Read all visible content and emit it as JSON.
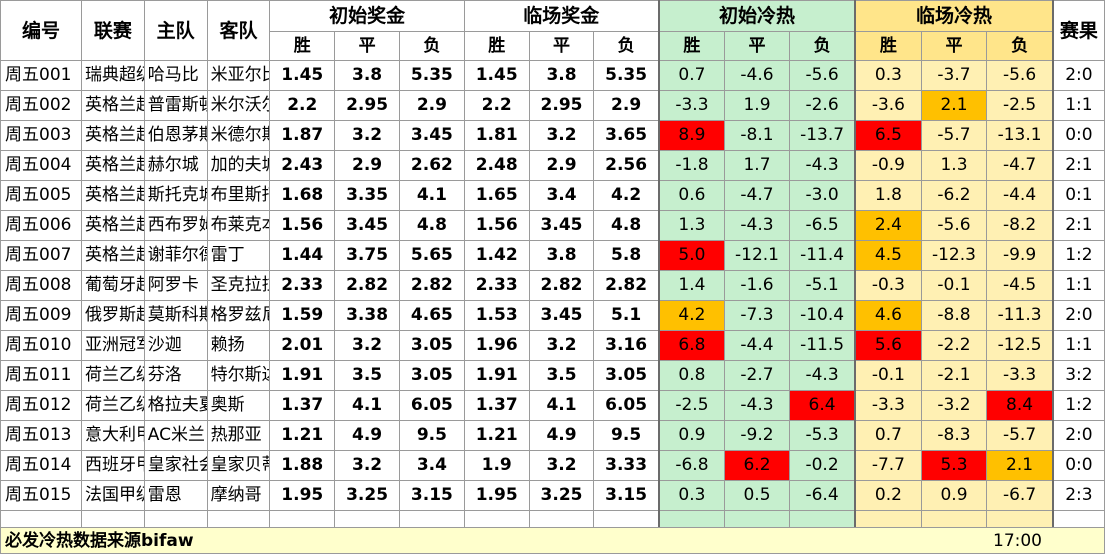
{
  "headers": {
    "id": "编号",
    "league": "联赛",
    "home": "主队",
    "away": "客队",
    "init_prize": "初始奖金",
    "live_prize": "临场奖金",
    "init_heat": "初始冷热",
    "live_heat": "临场冷热",
    "result": "赛果",
    "win": "胜",
    "draw": "平",
    "lose": "负"
  },
  "rows": [
    {
      "id": "周五001",
      "league": "瑞典超级",
      "home": "哈马比",
      "away": "米亚尔比",
      "ip": [
        "1.45",
        "3.8",
        "5.35"
      ],
      "lp": [
        "1.45",
        "3.8",
        "5.35"
      ],
      "ih": [
        "0.7",
        "-4.6",
        "-5.6"
      ],
      "lh": [
        "0.3",
        "-3.7",
        "-5.6"
      ],
      "res": "2:0"
    },
    {
      "id": "周五002",
      "league": "英格兰超",
      "home": "普雷斯顿",
      "away": "米尔沃尔",
      "ip": [
        "2.2",
        "2.95",
        "2.9"
      ],
      "lp": [
        "2.2",
        "2.95",
        "2.9"
      ],
      "ih": [
        "-3.3",
        "1.9",
        "-2.6"
      ],
      "lh": [
        "-3.6",
        "2.1",
        "-2.5"
      ],
      "res": "1:1"
    },
    {
      "id": "周五003",
      "league": "英格兰超",
      "home": "伯恩茅斯",
      "away": "米德尔斯",
      "ip": [
        "1.87",
        "3.2",
        "3.45"
      ],
      "lp": [
        "1.81",
        "3.2",
        "3.65"
      ],
      "ih": [
        "8.9",
        "-8.1",
        "-13.7"
      ],
      "lh": [
        "6.5",
        "-5.7",
        "-13.1"
      ],
      "res": "0:0"
    },
    {
      "id": "周五004",
      "league": "英格兰超",
      "home": "赫尔城",
      "away": "加的夫城",
      "ip": [
        "2.43",
        "2.9",
        "2.62"
      ],
      "lp": [
        "2.48",
        "2.9",
        "2.56"
      ],
      "ih": [
        "-1.8",
        "1.7",
        "-4.3"
      ],
      "lh": [
        "-0.9",
        "1.3",
        "-4.7"
      ],
      "res": "2:1"
    },
    {
      "id": "周五005",
      "league": "英格兰超",
      "home": "斯托克城",
      "away": "布里斯托",
      "ip": [
        "1.68",
        "3.35",
        "4.1"
      ],
      "lp": [
        "1.65",
        "3.4",
        "4.2"
      ],
      "ih": [
        "0.6",
        "-4.7",
        "-3.0"
      ],
      "lh": [
        "1.8",
        "-6.2",
        "-4.4"
      ],
      "res": "0:1"
    },
    {
      "id": "周五006",
      "league": "英格兰超",
      "home": "西布罗姆",
      "away": "布莱克本",
      "ip": [
        "1.56",
        "3.45",
        "4.8"
      ],
      "lp": [
        "1.56",
        "3.45",
        "4.8"
      ],
      "ih": [
        "1.3",
        "-4.3",
        "-6.5"
      ],
      "lh": [
        "2.4",
        "-5.6",
        "-8.2"
      ],
      "res": "2:1"
    },
    {
      "id": "周五007",
      "league": "英格兰超",
      "home": "谢菲尔德",
      "away": "雷丁",
      "ip": [
        "1.44",
        "3.75",
        "5.65"
      ],
      "lp": [
        "1.42",
        "3.8",
        "5.8"
      ],
      "ih": [
        "5.0",
        "-12.1",
        "-11.4"
      ],
      "lh": [
        "4.5",
        "-12.3",
        "-9.9"
      ],
      "res": "1:2"
    },
    {
      "id": "周五008",
      "league": "葡萄牙超",
      "home": "阿罗卡",
      "away": "圣克拉拉",
      "ip": [
        "2.33",
        "2.82",
        "2.82"
      ],
      "lp": [
        "2.33",
        "2.82",
        "2.82"
      ],
      "ih": [
        "1.4",
        "-1.6",
        "-5.1"
      ],
      "lh": [
        "-0.3",
        "-0.1",
        "-4.5"
      ],
      "res": "1:1"
    },
    {
      "id": "周五009",
      "league": "俄罗斯超",
      "home": "莫斯科斯",
      "away": "格罗兹尼",
      "ip": [
        "1.59",
        "3.38",
        "4.65"
      ],
      "lp": [
        "1.53",
        "3.45",
        "5.1"
      ],
      "ih": [
        "4.2",
        "-7.3",
        "-10.4"
      ],
      "lh": [
        "4.6",
        "-8.8",
        "-11.3"
      ],
      "res": "2:0"
    },
    {
      "id": "周五010",
      "league": "亚洲冠军",
      "home": "沙迦",
      "away": "赖扬",
      "ip": [
        "2.01",
        "3.2",
        "3.05"
      ],
      "lp": [
        "1.96",
        "3.2",
        "3.16"
      ],
      "ih": [
        "6.8",
        "-4.4",
        "-11.5"
      ],
      "lh": [
        "5.6",
        "-2.2",
        "-12.5"
      ],
      "res": "1:1"
    },
    {
      "id": "周五011",
      "league": "荷兰乙级",
      "home": "芬洛",
      "away": "特尔斯达",
      "ip": [
        "1.91",
        "3.5",
        "3.05"
      ],
      "lp": [
        "1.91",
        "3.5",
        "3.05"
      ],
      "ih": [
        "0.8",
        "-2.7",
        "-4.3"
      ],
      "lh": [
        "-0.1",
        "-2.1",
        "-3.3"
      ],
      "res": "3:2"
    },
    {
      "id": "周五012",
      "league": "荷兰乙级",
      "home": "格拉夫夏",
      "away": "奥斯",
      "ip": [
        "1.37",
        "4.1",
        "6.05"
      ],
      "lp": [
        "1.37",
        "4.1",
        "6.05"
      ],
      "ih": [
        "-2.5",
        "-4.3",
        "6.4"
      ],
      "lh": [
        "-3.3",
        "-3.2",
        "8.4"
      ],
      "res": "1:2"
    },
    {
      "id": "周五013",
      "league": "意大利甲",
      "home": "AC米兰",
      "away": "热那亚",
      "ip": [
        "1.21",
        "4.9",
        "9.5"
      ],
      "lp": [
        "1.21",
        "4.9",
        "9.5"
      ],
      "ih": [
        "0.9",
        "-9.2",
        "-5.3"
      ],
      "lh": [
        "0.7",
        "-8.3",
        "-5.7"
      ],
      "res": "2:0"
    },
    {
      "id": "周五014",
      "league": "西班牙甲",
      "home": "皇家社会",
      "away": "皇家贝蒂",
      "ip": [
        "1.88",
        "3.2",
        "3.4"
      ],
      "lp": [
        "1.9",
        "3.2",
        "3.33"
      ],
      "ih": [
        "-6.8",
        "6.2",
        "-0.2"
      ],
      "lh": [
        "-7.7",
        "5.3",
        "2.1"
      ],
      "res": "0:0"
    },
    {
      "id": "周五015",
      "league": "法国甲级",
      "home": "雷恩",
      "away": "摩纳哥",
      "ip": [
        "1.95",
        "3.25",
        "3.15"
      ],
      "lp": [
        "1.95",
        "3.25",
        "3.15"
      ],
      "ih": [
        "0.3",
        "0.5",
        "-6.4"
      ],
      "lh": [
        "0.2",
        "0.9",
        "-6.7"
      ],
      "res": "2:3"
    }
  ],
  "highlights": {
    "ih": {
      "2": {
        "0": "red"
      },
      "6": {
        "0": "red"
      },
      "8": {
        "0": "org"
      },
      "9": {
        "0": "red"
      },
      "11": {
        "2": "red"
      },
      "13": {
        "1": "red"
      }
    },
    "lh": {
      "1": {
        "1": "org"
      },
      "2": {
        "0": "red"
      },
      "5": {
        "0": "org"
      },
      "6": {
        "0": "org"
      },
      "8": {
        "0": "org"
      },
      "9": {
        "0": "red"
      },
      "11": {
        "2": "red"
      },
      "13": {
        "1": "red",
        "2": "org"
      }
    }
  },
  "footer": {
    "label": "必发冷热数据来源bifaw",
    "time": "17:00"
  },
  "colors": {
    "heat_green": "#c6efce",
    "heat_yellow": "#fff0b3",
    "hot_red": "#ff0000",
    "warm_orange": "#ffc000",
    "footer_bg": "#ffffcc"
  }
}
